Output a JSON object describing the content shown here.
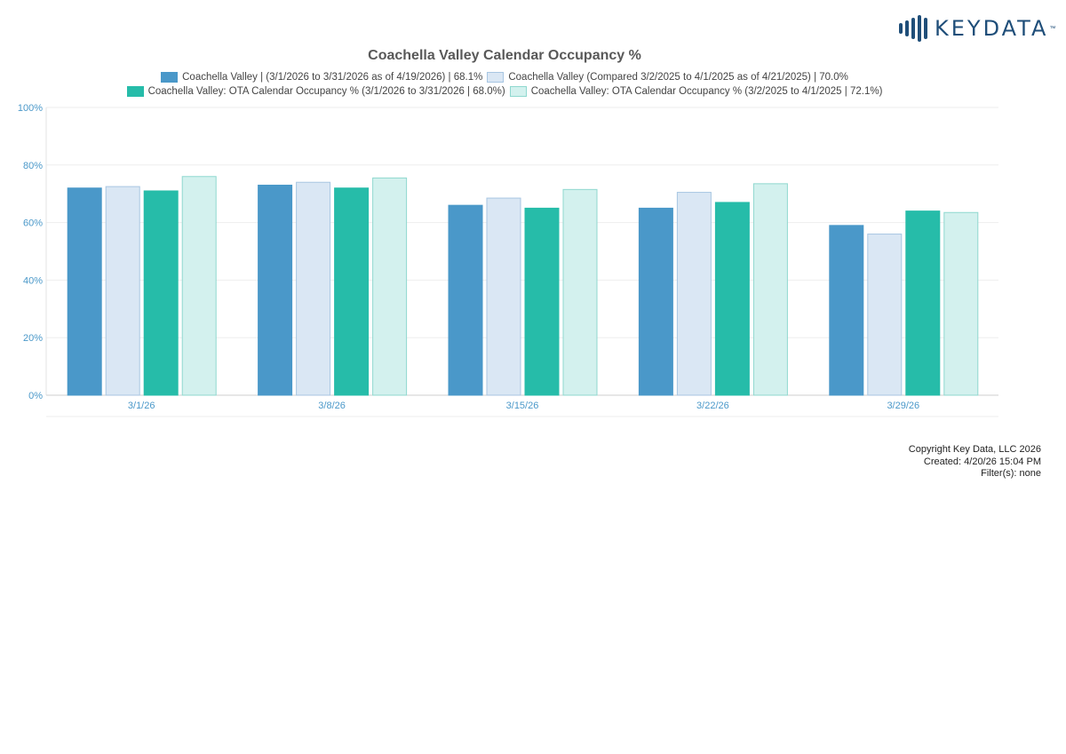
{
  "brand": {
    "name": "KEYDATA",
    "tm": "™"
  },
  "colors": {
    "series": [
      "#4a98c9",
      "#dae7f4",
      "#26bca9",
      "#d3f1ee"
    ],
    "series_stroke": [
      "#4a98c9",
      "#a8c6e2",
      "#26bca9",
      "#8fd8cf"
    ],
    "axis_text": "#4a98c9",
    "grid": "#eeeeee"
  },
  "chart_data": {
    "type": "bar",
    "title": "Coachella Valley Calendar Occupancy %",
    "categories": [
      "3/1/26",
      "3/8/26",
      "3/15/26",
      "3/22/26",
      "3/29/26"
    ],
    "series": [
      {
        "name": "Coachella Valley | (3/1/2026 to 3/31/2026 as of 4/19/2026) | 68.1%",
        "values": [
          72,
          73,
          66,
          65,
          59
        ]
      },
      {
        "name": "Coachella Valley (Compared 3/2/2025 to 4/1/2025 as of 4/21/2025) | 70.0%",
        "values": [
          72.5,
          74,
          68.5,
          70.5,
          56
        ]
      },
      {
        "name": "Coachella Valley: OTA Calendar Occupancy % (3/1/2026 to 3/31/2026 | 68.0%)",
        "values": [
          71,
          72,
          65,
          67,
          64
        ]
      },
      {
        "name": "Coachella Valley: OTA Calendar Occupancy % (3/2/2025 to 4/1/2025 | 72.1%)",
        "values": [
          76,
          75.5,
          71.5,
          73.5,
          63.5
        ]
      }
    ],
    "yticks": [
      "0%",
      "20%",
      "40%",
      "60%",
      "80%",
      "100%"
    ],
    "ylim": [
      0,
      100
    ],
    "grid": true,
    "legend": "top"
  },
  "footer": {
    "copyright": "Copyright Key Data, LLC 2026",
    "created": "Created: 4/20/26 15:04 PM",
    "filters": "Filter(s): none"
  }
}
